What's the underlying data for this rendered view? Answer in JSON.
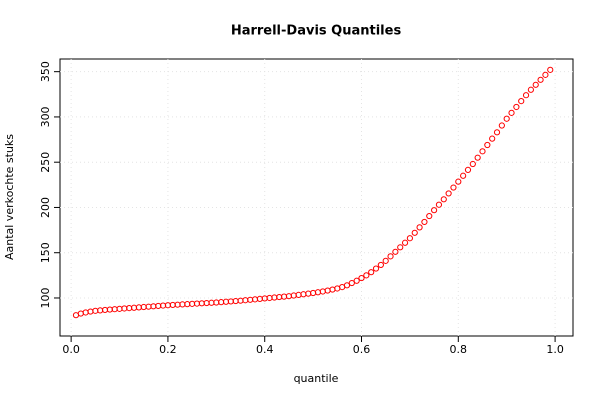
{
  "chart_data": {
    "type": "scatter",
    "title": "Harrell-Davis Quantiles",
    "x_label": "quantile",
    "y_label": "Aantal verkochte stuks",
    "x": [
      0.01,
      0.02,
      0.03,
      0.04,
      0.05,
      0.06,
      0.07,
      0.08,
      0.09,
      0.1,
      0.11,
      0.12,
      0.13,
      0.14,
      0.15,
      0.16,
      0.17,
      0.18,
      0.19,
      0.2,
      0.21,
      0.22,
      0.23,
      0.24,
      0.25,
      0.26,
      0.27,
      0.28,
      0.29,
      0.3,
      0.31,
      0.32,
      0.33,
      0.34,
      0.35,
      0.36,
      0.37,
      0.38,
      0.39,
      0.4,
      0.41,
      0.42,
      0.43,
      0.44,
      0.45,
      0.46,
      0.47,
      0.48,
      0.49,
      0.5,
      0.51,
      0.52,
      0.53,
      0.54,
      0.55,
      0.56,
      0.57,
      0.58,
      0.59,
      0.6,
      0.61,
      0.62,
      0.63,
      0.64,
      0.65,
      0.66,
      0.67,
      0.68,
      0.69,
      0.7,
      0.71,
      0.72,
      0.73,
      0.74,
      0.75,
      0.76,
      0.77,
      0.78,
      0.79,
      0.8,
      0.81,
      0.82,
      0.83,
      0.84,
      0.85,
      0.86,
      0.87,
      0.88,
      0.89,
      0.9,
      0.91,
      0.92,
      0.93,
      0.94,
      0.95,
      0.96,
      0.97,
      0.98,
      0.99
    ],
    "values": [
      81,
      82.8,
      84,
      85,
      85.8,
      86.3,
      86.8,
      87.2,
      87.6,
      88,
      88.4,
      88.8,
      89.2,
      89.6,
      90,
      90.4,
      90.8,
      91.2,
      91.6,
      92,
      92.3,
      92.6,
      92.9,
      93.2,
      93.5,
      93.8,
      94.1,
      94.4,
      94.7,
      95,
      95.4,
      95.8,
      96.2,
      96.6,
      97,
      97.5,
      98,
      98.5,
      99,
      99.5,
      100,
      100.5,
      101,
      101.5,
      102,
      102.7,
      103.4,
      104.1,
      104.8,
      105.5,
      106.3,
      107.2,
      108.2,
      109.3,
      110.5,
      112,
      114,
      116.5,
      119,
      122,
      125,
      128.5,
      132.5,
      136.5,
      141,
      146,
      151,
      156,
      161,
      166,
      172,
      178,
      184,
      190.5,
      197,
      203,
      209,
      215.5,
      222,
      228.5,
      235,
      241.5,
      248,
      255,
      262,
      269,
      276,
      283,
      290.5,
      298,
      304.5,
      311,
      317.5,
      324,
      330,
      335.5,
      341,
      346.5,
      352
    ],
    "color": "#ff0000",
    "xlim": [
      -0.023,
      1.037
    ],
    "ylim": [
      58,
      364
    ],
    "xticks": [
      {
        "value": 0,
        "label": "0.0"
      },
      0.2,
      0.4,
      0.6,
      0.8,
      {
        "value": 1,
        "label": "1.0"
      }
    ],
    "yticks": [
      100,
      150,
      200,
      250,
      300,
      350
    ],
    "grid": true
  }
}
